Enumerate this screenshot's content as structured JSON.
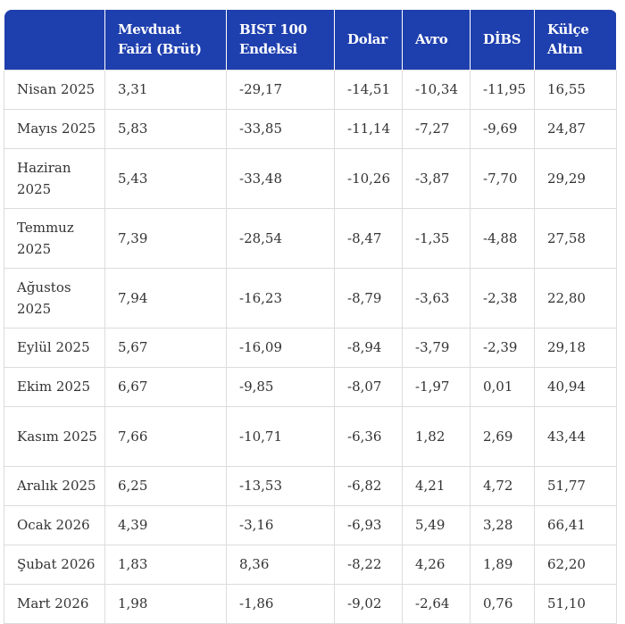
{
  "table": {
    "headers": [
      "",
      "Mevduat Faizi (Brüt)",
      "BIST 100 Endeksi",
      "Dolar",
      "Avro",
      "DİBS",
      "Külçe Altın"
    ],
    "rows": [
      [
        "Nisan 2025",
        "3,31",
        "-29,17",
        "-14,51",
        "-10,34",
        "-11,95",
        "16,55"
      ],
      [
        "Mayıs 2025",
        "5,83",
        "-33,85",
        "-11,14",
        "-7,27",
        "-9,69",
        "24,87"
      ],
      [
        "Haziran 2025",
        "5,43",
        "-33,48",
        "-10,26",
        "-3,87",
        "-7,70",
        "29,29"
      ],
      [
        "Temmuz 2025",
        "7,39",
        "-28,54",
        "-8,47",
        "-1,35",
        "-4,88",
        "27,58"
      ],
      [
        "Ağustos 2025",
        "7,94",
        "-16,23",
        "-8,79",
        "-3,63",
        "-2,38",
        "22,80"
      ],
      [
        "Eylül 2025",
        "5,67",
        "-16,09",
        "-8,94",
        "-3,79",
        "-2,39",
        "29,18"
      ],
      [
        "Ekim 2025",
        "6,67",
        "-9,85",
        "-8,07",
        "-1,97",
        "0,01",
        "40,94"
      ],
      [
        "Kasım 2025",
        "7,66",
        "-10,71",
        "-6,36",
        "1,82",
        "2,69",
        "43,44"
      ],
      [
        "Aralık 2025",
        "6,25",
        "-13,53",
        "-6,82",
        "4,21",
        "4,72",
        "51,77"
      ],
      [
        "Ocak 2026",
        "4,39",
        "-3,16",
        "-6,93",
        "5,49",
        "3,28",
        "66,41"
      ],
      [
        "Şubat 2026",
        "1,83",
        "8,36",
        "-8,22",
        "4,26",
        "1,89",
        "62,20"
      ],
      [
        "Mart 2026",
        "1,98",
        "-1,86",
        "-9,02",
        "-2,64",
        "0,76",
        "51,10"
      ]
    ]
  },
  "colors": {
    "header_bg": "#1e3fae",
    "header_text": "#ffffff",
    "cell_text": "#333333",
    "border": "#dcdcdc"
  }
}
